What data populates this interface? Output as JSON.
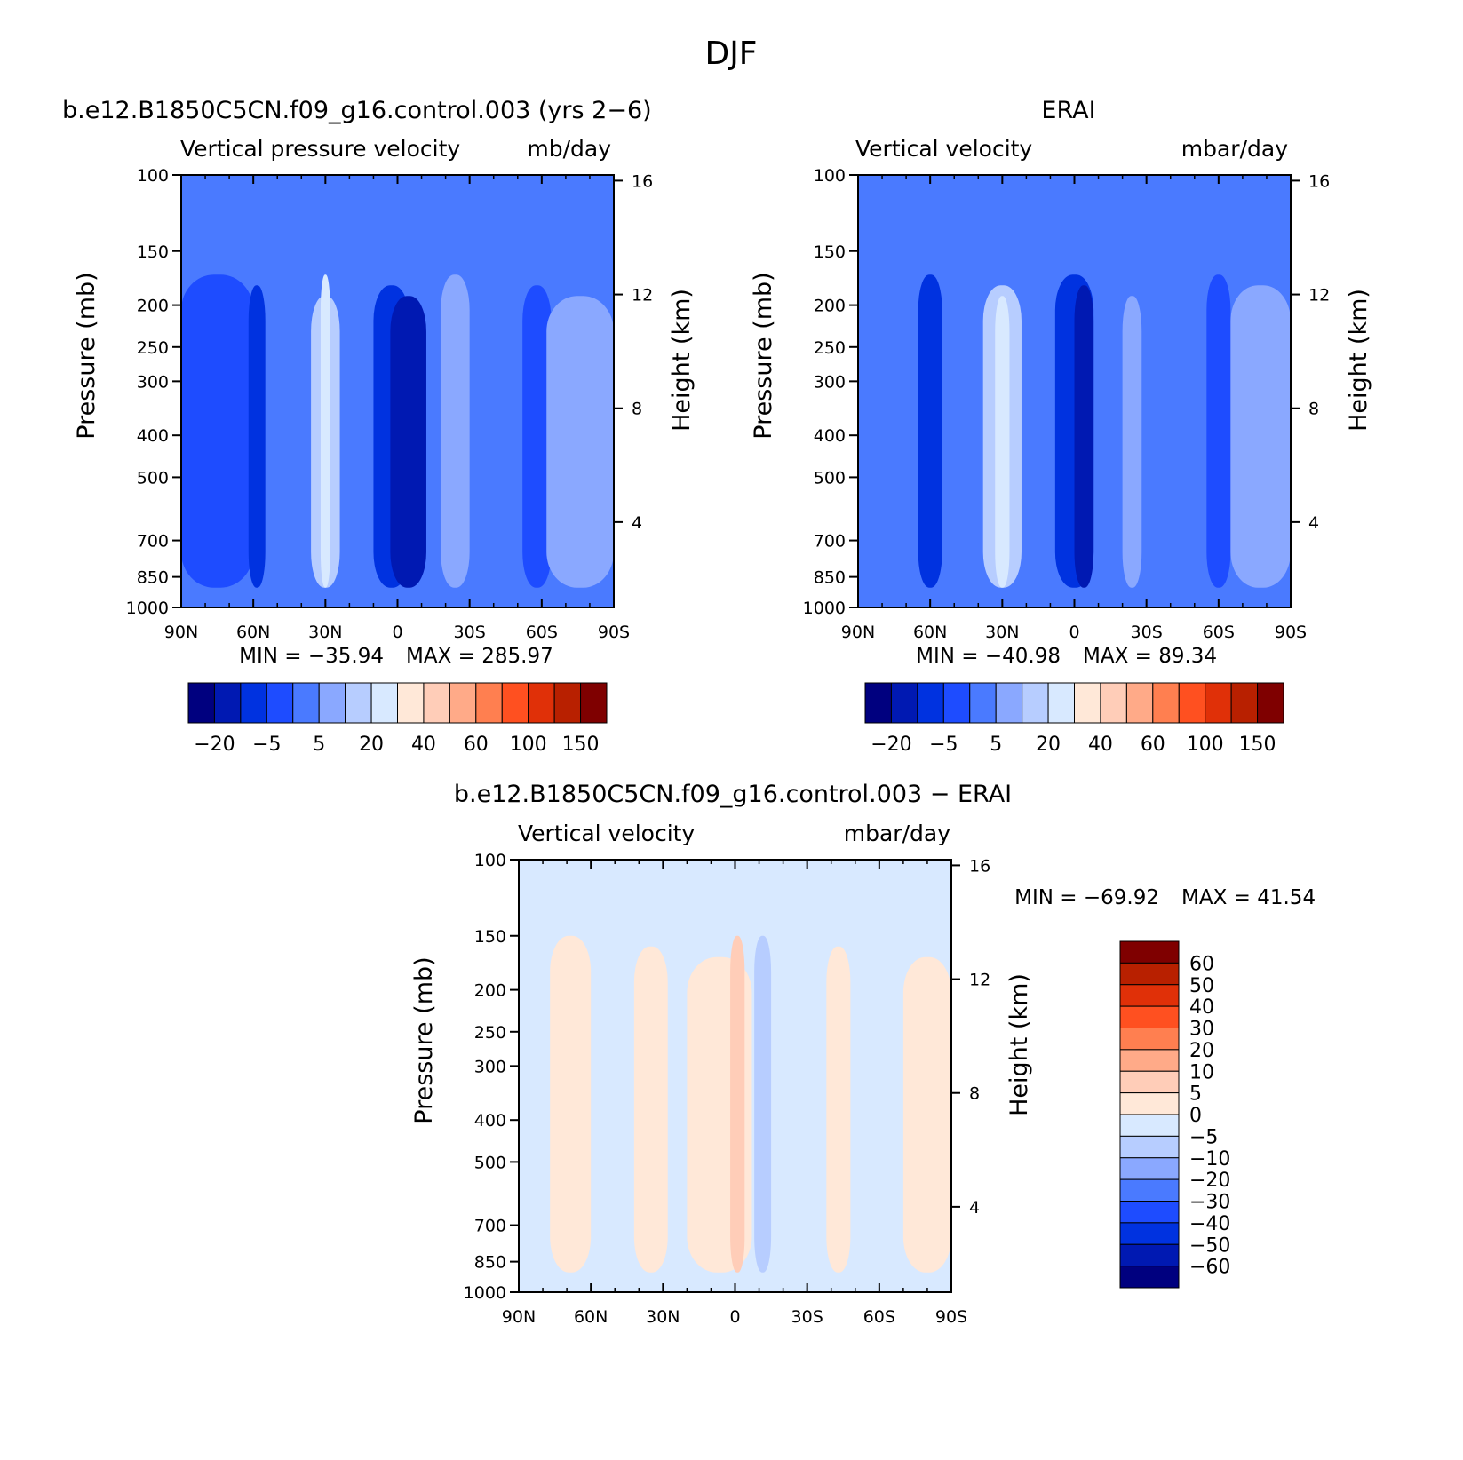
{
  "page_title": "DJF",
  "colors": {
    "model_scale": [
      "#00007f",
      "#0019b2",
      "#0032e0",
      "#1e4cff",
      "#4a7aff",
      "#8aa8ff",
      "#b7cdff",
      "#d8e9ff",
      "#ffe8d8",
      "#ffcdb8",
      "#ffaa88",
      "#ff7f50",
      "#ff5020",
      "#e03008",
      "#b82000",
      "#7f0000"
    ],
    "diff_scale": [
      "#00007f",
      "#0019b2",
      "#0032e0",
      "#1e4cff",
      "#4a7aff",
      "#8aa8ff",
      "#b7cdff",
      "#d8e9ff",
      "#ffe8d8",
      "#ffcdb8",
      "#ffaa88",
      "#ff7f50",
      "#ff5020",
      "#e03008",
      "#b82000",
      "#7f0000"
    ]
  },
  "chart_data": [
    {
      "id": "model",
      "type": "heatmap",
      "title": "b.e12.B1850C5CN.f09_g16.control.003 (yrs 2−6)",
      "variable": "Vertical pressure velocity",
      "units": "mb/day",
      "ylabel": "Pressure (mb)",
      "y2label": "Height (km)",
      "x_ticks": [
        "90N",
        "60N",
        "30N",
        "0",
        "30S",
        "60S",
        "90S"
      ],
      "y_ticks": [
        "100",
        "150",
        "200",
        "250",
        "300",
        "400",
        "500",
        "700",
        "850",
        "1000"
      ],
      "y_tick_values": [
        100,
        150,
        200,
        250,
        300,
        400,
        500,
        700,
        850,
        1000
      ],
      "y2_ticks": [
        "16",
        "12",
        "8",
        "4"
      ],
      "y2_tick_values": [
        16,
        12,
        8,
        4
      ],
      "min_label": "MIN = −35.94",
      "max_label": "MAX = 285.97",
      "min": -35.94,
      "max": 285.97,
      "colorbar_labels": [
        "−20",
        "−5",
        "5",
        "20",
        "40",
        "60",
        "100",
        "150"
      ],
      "colorbar_levels": [
        -20,
        -5,
        5,
        20,
        40,
        60,
        100,
        150
      ],
      "base_color_index": 4,
      "bands": [
        {
          "lat1": 90,
          "lat2": 60,
          "level": 3
        },
        {
          "lat1": 62,
          "lat2": 55,
          "level": 2
        },
        {
          "lat1": 36,
          "lat2": 24,
          "level": 6
        },
        {
          "lat1": 32,
          "lat2": 28,
          "level": 7
        },
        {
          "lat1": 10,
          "lat2": -5,
          "level": 2
        },
        {
          "lat1": 3,
          "lat2": -12,
          "level": 1
        },
        {
          "lat1": -18,
          "lat2": -30,
          "level": 5
        },
        {
          "lat1": -52,
          "lat2": -64,
          "level": 3
        },
        {
          "lat1": -62,
          "lat2": -90,
          "level": 5
        }
      ]
    },
    {
      "id": "obs",
      "type": "heatmap",
      "title": "ERAI",
      "variable": "Vertical velocity",
      "units": "mbar/day",
      "ylabel": "Pressure (mb)",
      "y2label": "Height (km)",
      "x_ticks": [
        "90N",
        "60N",
        "30N",
        "0",
        "30S",
        "60S",
        "90S"
      ],
      "y_ticks": [
        "100",
        "150",
        "200",
        "250",
        "300",
        "400",
        "500",
        "700",
        "850",
        "1000"
      ],
      "y_tick_values": [
        100,
        150,
        200,
        250,
        300,
        400,
        500,
        700,
        850,
        1000
      ],
      "y2_ticks": [
        "16",
        "12",
        "8",
        "4"
      ],
      "y2_tick_values": [
        16,
        12,
        8,
        4
      ],
      "min_label": "MIN = −40.98",
      "max_label": "MAX =  89.34",
      "min": -40.98,
      "max": 89.34,
      "colorbar_labels": [
        "−20",
        "−5",
        "5",
        "20",
        "40",
        "60",
        "100",
        "150"
      ],
      "colorbar_levels": [
        -20,
        -5,
        5,
        20,
        40,
        60,
        100,
        150
      ],
      "base_color_index": 4,
      "bands": [
        {
          "lat1": 65,
          "lat2": 55,
          "level": 2
        },
        {
          "lat1": 38,
          "lat2": 22,
          "level": 6
        },
        {
          "lat1": 33,
          "lat2": 27,
          "level": 7
        },
        {
          "lat1": 8,
          "lat2": -8,
          "level": 2
        },
        {
          "lat1": 0,
          "lat2": -8,
          "level": 1
        },
        {
          "lat1": -20,
          "lat2": -28,
          "level": 5
        },
        {
          "lat1": -55,
          "lat2": -65,
          "level": 3
        },
        {
          "lat1": -65,
          "lat2": -90,
          "level": 5
        }
      ]
    },
    {
      "id": "diff",
      "type": "heatmap",
      "title": "b.e12.B1850C5CN.f09_g16.control.003 − ERAI",
      "variable": "Vertical velocity",
      "units": "mbar/day",
      "ylabel": "Pressure (mb)",
      "y2label": "Height (km)",
      "x_ticks": [
        "90N",
        "60N",
        "30N",
        "0",
        "30S",
        "60S",
        "90S"
      ],
      "y_ticks": [
        "100",
        "150",
        "200",
        "250",
        "300",
        "400",
        "500",
        "700",
        "850",
        "1000"
      ],
      "y_tick_values": [
        100,
        150,
        200,
        250,
        300,
        400,
        500,
        700,
        850,
        1000
      ],
      "y2_ticks": [
        "16",
        "12",
        "8",
        "4"
      ],
      "y2_tick_values": [
        16,
        12,
        8,
        4
      ],
      "min_label": "MIN = −69.92",
      "max_label": "MAX =  41.54",
      "min": -69.92,
      "max": 41.54,
      "colorbar_labels": [
        "60",
        "50",
        "40",
        "30",
        "20",
        "10",
        "5",
        "0",
        "−5",
        "−10",
        "−20",
        "−30",
        "−40",
        "−50",
        "−60"
      ],
      "colorbar_levels": [
        60,
        50,
        40,
        30,
        20,
        10,
        5,
        0,
        -5,
        -10,
        -20,
        -30,
        -40,
        -50,
        -60
      ],
      "base_color_index": 7,
      "bands": [
        {
          "lat1": 77,
          "lat2": 60,
          "level": 8
        },
        {
          "lat1": 42,
          "lat2": 28,
          "level": 8
        },
        {
          "lat1": 20,
          "lat2": -7,
          "level": 8
        },
        {
          "lat1": 2,
          "lat2": -4,
          "level": 9
        },
        {
          "lat1": -38,
          "lat2": -48,
          "level": 8
        },
        {
          "lat1": -70,
          "lat2": -90,
          "level": 8
        },
        {
          "lat1": -8,
          "lat2": -15,
          "level": 6
        }
      ]
    }
  ]
}
